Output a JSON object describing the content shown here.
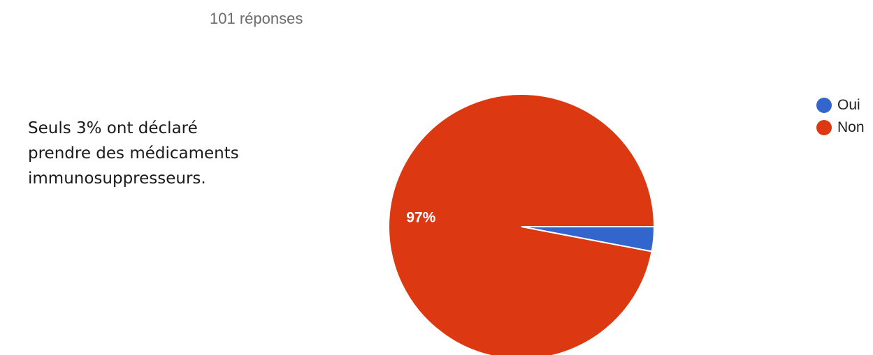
{
  "header": {
    "responses": "101 réponses"
  },
  "caption": {
    "text": "Seuls 3% ont déclaré prendre des médicaments immunosuppresseurs."
  },
  "legend": {
    "items": [
      {
        "label": "Oui",
        "color": "#3366cc"
      },
      {
        "label": "Non",
        "color": "#dc3912"
      }
    ]
  },
  "chart_data": {
    "type": "pie",
    "title": "",
    "categories": [
      "Oui",
      "Non"
    ],
    "values": [
      3,
      97
    ],
    "colors": [
      "#3366cc",
      "#dc3912"
    ],
    "data_labels": [
      "",
      "97%"
    ],
    "legend_position": "right"
  }
}
